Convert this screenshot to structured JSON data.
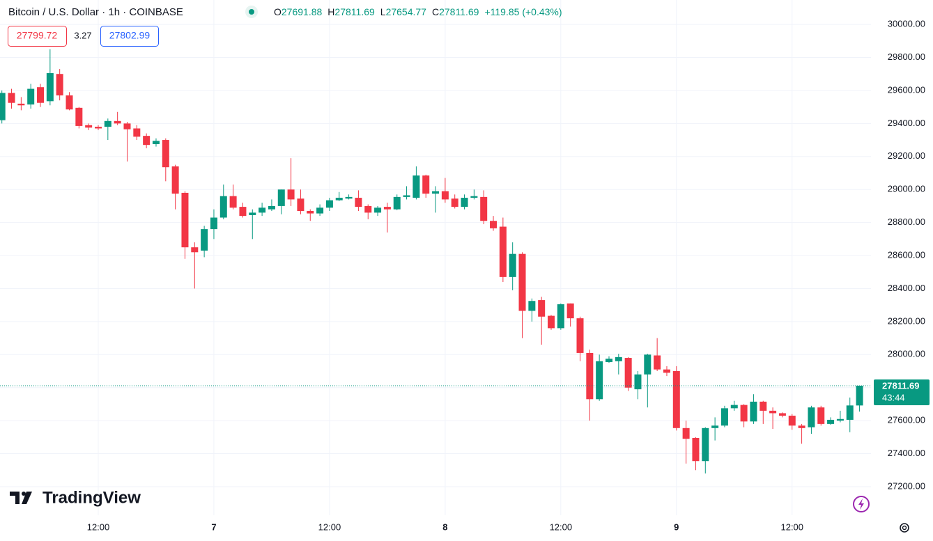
{
  "chart_data": {
    "type": "candlestick",
    "title": "Bitcoin / U.S. Dollar · 1h · COINBASE",
    "ohlc_labels": {
      "open": "O",
      "high": "H",
      "low": "L",
      "close": "C"
    },
    "change_text": "+119.85 (+0.43%)",
    "bid": 27799.72,
    "spread": 3.27,
    "ask": 27802.99,
    "countdown": "43:44",
    "watermark": "TradingView",
    "up_color": "#089981",
    "down_color": "#f23645",
    "grid": true,
    "categories": [
      null,
      null,
      null,
      null,
      null,
      null,
      null,
      null,
      null,
      null,
      "12:00",
      null,
      null,
      null,
      null,
      null,
      null,
      null,
      null,
      null,
      null,
      null,
      "7",
      null,
      null,
      null,
      null,
      null,
      null,
      null,
      null,
      null,
      null,
      null,
      "12:00",
      null,
      null,
      null,
      null,
      null,
      null,
      null,
      null,
      null,
      null,
      null,
      "8",
      null,
      null,
      null,
      null,
      null,
      null,
      null,
      null,
      null,
      null,
      null,
      "12:00",
      null,
      null,
      null,
      null,
      null,
      null,
      null,
      null,
      null,
      null,
      null,
      "9",
      null,
      null,
      null,
      null,
      null,
      null,
      null,
      null,
      null,
      null,
      null,
      "12:00",
      null,
      null,
      null,
      null,
      null,
      null,
      null
    ],
    "open": [
      29420,
      29585,
      29520,
      29515,
      29620,
      29535,
      29700,
      29570,
      29495,
      29390,
      29380,
      29380,
      29415,
      29400,
      29370,
      29325,
      29275,
      29300,
      29140,
      28980,
      28650,
      28630,
      28760,
      28830,
      28960,
      28895,
      28845,
      28860,
      28880,
      28900,
      29000,
      28945,
      28870,
      28855,
      28890,
      28935,
      28945,
      28950,
      28900,
      28860,
      28895,
      28880,
      28955,
      28950,
      29085,
      28975,
      28990,
      28945,
      28895,
      28950,
      28955,
      28810,
      28775,
      28470,
      28610,
      28265,
      28330,
      28235,
      28160,
      28310,
      28220,
      28010,
      27730,
      27955,
      27960,
      27980,
      27790,
      27880,
      27995,
      27910,
      27900,
      27555,
      27495,
      27355,
      27555,
      27570,
      27675,
      27695,
      27595,
      27715,
      27660,
      27645,
      27630,
      27570,
      27560,
      27680,
      27580,
      27600,
      27605,
      27691.88
    ],
    "high": [
      29600,
      29610,
      29560,
      29640,
      29640,
      29850,
      29730,
      29590,
      29500,
      29400,
      29390,
      29430,
      29470,
      29410,
      29390,
      29340,
      29310,
      29310,
      29150,
      28990,
      28680,
      28780,
      28880,
      29030,
      29030,
      28920,
      28880,
      28920,
      28940,
      29000,
      29190,
      29000,
      28880,
      28910,
      28950,
      28985,
      28970,
      28995,
      28910,
      28900,
      28920,
      28970,
      29020,
      29140,
      29090,
      29020,
      29070,
      28970,
      28970,
      29000,
      28995,
      28840,
      28830,
      28680,
      28620,
      28340,
      28350,
      28240,
      28310,
      28310,
      28230,
      28030,
      28000,
      27990,
      28005,
      27985,
      27900,
      28005,
      28100,
      27930,
      27930,
      27600,
      27500,
      27560,
      27620,
      27690,
      27720,
      27700,
      27760,
      27720,
      27680,
      27650,
      27640,
      27580,
      27690,
      27690,
      27620,
      27660,
      27740,
      27811.69
    ],
    "low": [
      29400,
      29490,
      29480,
      29490,
      29500,
      29510,
      29540,
      29480,
      29370,
      29360,
      29360,
      29300,
      29390,
      29170,
      29300,
      29250,
      29260,
      29050,
      28880,
      28580,
      28400,
      28590,
      28700,
      28820,
      28880,
      28830,
      28700,
      28840,
      28870,
      28850,
      28900,
      28850,
      28810,
      28840,
      28870,
      28930,
      28940,
      28870,
      28820,
      28840,
      28740,
      28875,
      28940,
      28940,
      28950,
      28860,
      28920,
      28885,
      28880,
      28940,
      28790,
      28750,
      28440,
      28390,
      28100,
      28200,
      28060,
      28150,
      28150,
      28170,
      27960,
      27600,
      27720,
      27950,
      27880,
      27780,
      27730,
      27680,
      27900,
      27870,
      27540,
      27340,
      27300,
      27280,
      27480,
      27560,
      27660,
      27560,
      27580,
      27580,
      27550,
      27620,
      27545,
      27460,
      27520,
      27570,
      27575,
      27590,
      27530,
      27654.77
    ],
    "close": [
      29585,
      29525,
      29510,
      29610,
      29525,
      29705,
      29570,
      29485,
      29385,
      29375,
      29370,
      29415,
      29400,
      29365,
      29320,
      29270,
      29295,
      29135,
      28975,
      28650,
      28620,
      28760,
      28830,
      28960,
      28890,
      28840,
      28860,
      28890,
      28900,
      29000,
      28940,
      28870,
      28855,
      28890,
      28935,
      28950,
      28955,
      28895,
      28860,
      28890,
      28880,
      28955,
      28965,
      29085,
      28975,
      28990,
      28940,
      28895,
      28950,
      28960,
      28810,
      28765,
      28470,
      28610,
      28265,
      28325,
      28230,
      28160,
      28305,
      28220,
      28010,
      27730,
      27960,
      27975,
      27985,
      27800,
      27880,
      28000,
      27910,
      27890,
      27555,
      27490,
      27355,
      27555,
      27570,
      27675,
      27695,
      27595,
      27715,
      27660,
      27645,
      27630,
      27570,
      27555,
      27680,
      27580,
      27605,
      27610,
      27692,
      27811.69
    ],
    "ylim": [
      27027,
      30148
    ],
    "yticks": [
      {
        "value": 27200,
        "label": "27200.00"
      },
      {
        "value": 27400,
        "label": "27400.00"
      },
      {
        "value": 27600,
        "label": "27600.00"
      },
      {
        "value": 27800,
        "label": "27800.00"
      },
      {
        "value": 28000,
        "label": "28000.00"
      },
      {
        "value": 28200,
        "label": "28200.00"
      },
      {
        "value": 28400,
        "label": "28400.00"
      },
      {
        "value": 28600,
        "label": "28600.00"
      },
      {
        "value": 28800,
        "label": "28800.00"
      },
      {
        "value": 29000,
        "label": "29000.00"
      },
      {
        "value": 29200,
        "label": "29200.00"
      },
      {
        "value": 29400,
        "label": "29400.00"
      },
      {
        "value": 29600,
        "label": "29600.00"
      },
      {
        "value": 29800,
        "label": "29800.00"
      },
      {
        "value": 30000,
        "label": "30000.00"
      }
    ]
  }
}
